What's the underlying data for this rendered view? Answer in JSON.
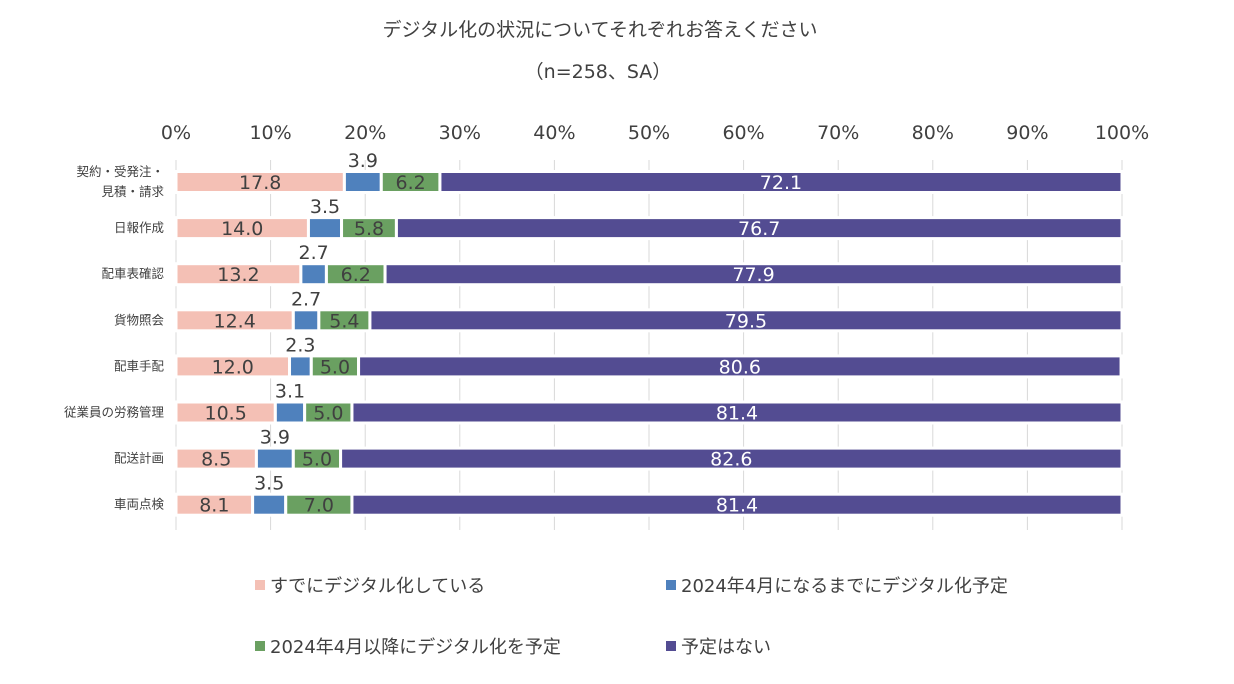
{
  "chart_data": {
    "type": "bar",
    "orientation": "horizontal",
    "stacked": true,
    "title": "デジタル化の状況についてそれぞれお答えください",
    "subtitle": "（n=258、SA）",
    "xlim": [
      0,
      100
    ],
    "x_ticks": [
      "0%",
      "10%",
      "20%",
      "30%",
      "40%",
      "50%",
      "60%",
      "70%",
      "80%",
      "90%",
      "100%"
    ],
    "grid": true,
    "legend_position": "bottom",
    "categories": [
      [
        "契約・受発注・",
        "見積・請求"
      ],
      [
        "日報作成"
      ],
      [
        "配車表確認"
      ],
      [
        "貨物照会"
      ],
      [
        "配車手配"
      ],
      [
        "従業員の労務管理"
      ],
      [
        "配送計画"
      ],
      [
        "車両点検"
      ]
    ],
    "series": [
      {
        "name": "すでにデジタル化している",
        "color": "#F4C0B5",
        "label_color": "#404040",
        "values": [
          17.8,
          14.0,
          13.2,
          12.4,
          12.0,
          10.5,
          8.5,
          8.1
        ]
      },
      {
        "name": "2024年4月になるまでにデジタル化予定",
        "color": "#4F81BD",
        "label_color": "#404040",
        "values": [
          3.9,
          3.5,
          2.7,
          2.7,
          2.3,
          3.1,
          3.9,
          3.5
        ]
      },
      {
        "name": "2024年4月以降にデジタル化を予定",
        "color": "#6AA061",
        "label_color": "#404040",
        "values": [
          6.2,
          5.8,
          6.2,
          5.4,
          5.0,
          5.0,
          5.0,
          7.0
        ]
      },
      {
        "name": "予定はない",
        "color": "#534C92",
        "label_color": "#FFFFFF",
        "values": [
          72.1,
          76.7,
          77.9,
          79.5,
          80.6,
          81.4,
          82.6,
          81.4
        ]
      }
    ]
  }
}
